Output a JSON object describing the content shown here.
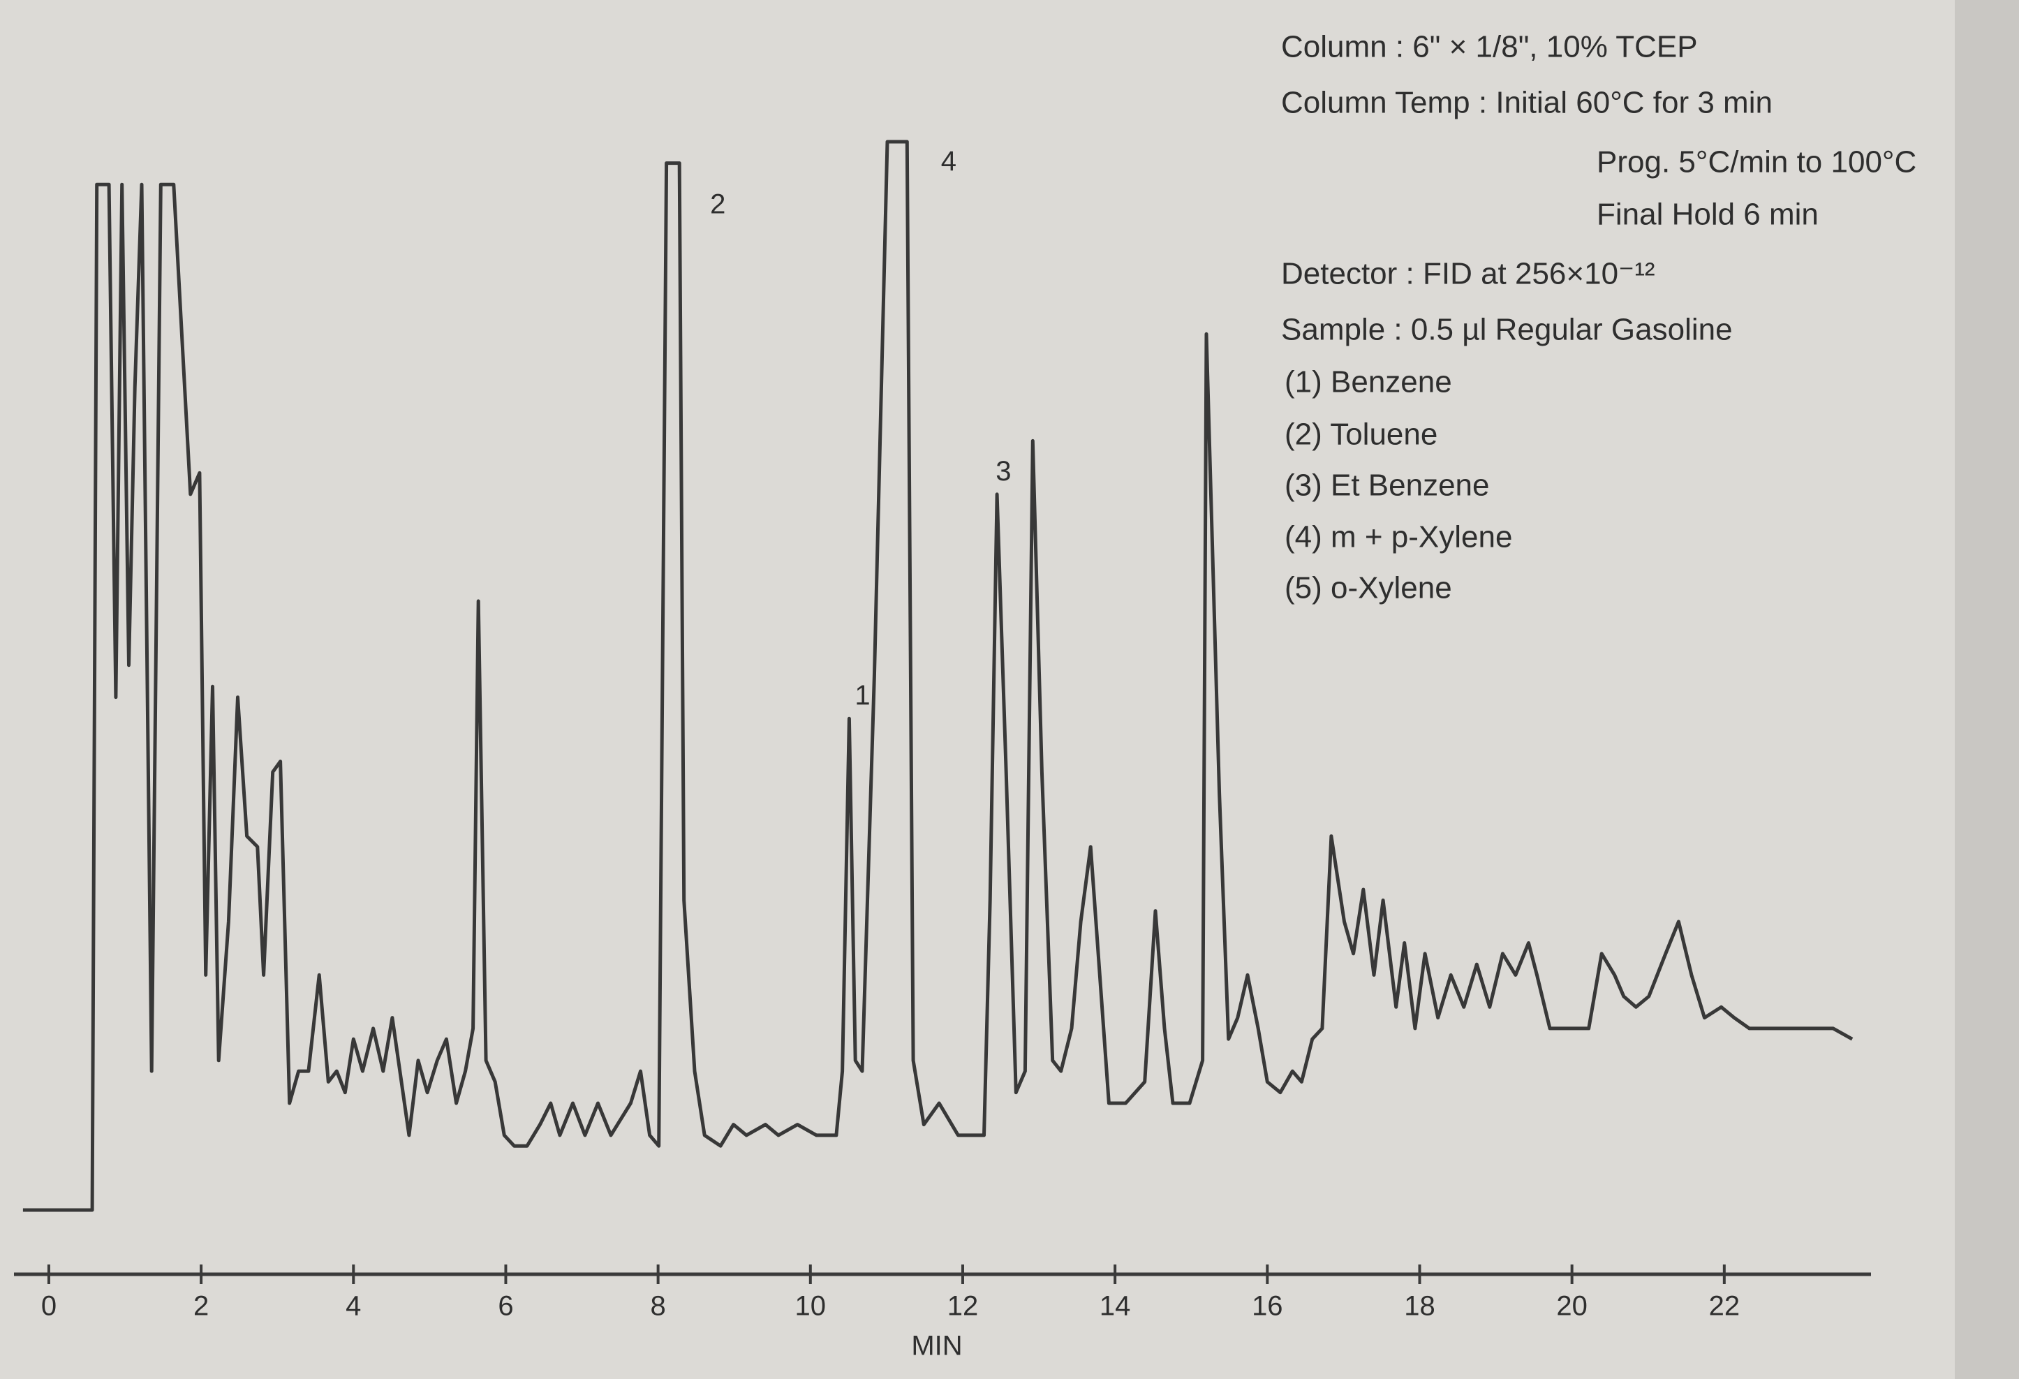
{
  "chart_data": {
    "type": "line",
    "x_label": "MIN",
    "annotations": [
      "Column : 6\" × 1/8\", 10% TCEP",
      "Column Temp : Initial 60°C for 3 min",
      "Prog. 5°C/min to 100°C",
      "Final Hold 6 min",
      "Detector : FID at 256×10⁻¹²",
      "Sample : 0.5 µl Regular Gasoline",
      "(1) Benzene",
      "(2) Toluene",
      "(3) Et Benzene",
      "(4) m + p-Xylene",
      "(5) o-Xylene"
    ],
    "peak_labels": [
      {
        "text": "1",
        "x": 10.51,
        "y": 48
      },
      {
        "text": "2",
        "x": 8.61,
        "y": 94
      },
      {
        "text": "3",
        "x": 12.36,
        "y": 69
      },
      {
        "text": "4",
        "x": 11.64,
        "y": 98
      }
    ],
    "x": [
      -0.34,
      0.57,
      0.63,
      0.79,
      0.88,
      0.96,
      1.05,
      1.13,
      1.22,
      1.35,
      1.47,
      1.64,
      1.86,
      1.98,
      2.06,
      2.15,
      2.23,
      2.36,
      2.48,
      2.6,
      2.74,
      2.82,
      2.94,
      3.04,
      3.16,
      3.28,
      3.41,
      3.55,
      3.67,
      3.78,
      3.89,
      4.0,
      4.12,
      4.26,
      4.39,
      4.51,
      4.63,
      4.73,
      4.85,
      4.97,
      5.1,
      5.22,
      5.35,
      5.47,
      5.57,
      5.64,
      5.74,
      5.86,
      5.98,
      6.11,
      6.28,
      6.45,
      6.59,
      6.71,
      6.88,
      7.04,
      7.21,
      7.38,
      7.64,
      7.77,
      7.89,
      8.01,
      8.11,
      8.28,
      8.34,
      8.48,
      8.61,
      8.82,
      8.99,
      9.16,
      9.41,
      9.58,
      9.83,
      10.08,
      10.34,
      10.42,
      10.51,
      10.59,
      10.68,
      10.84,
      11.01,
      11.27,
      11.35,
      11.49,
      11.69,
      11.94,
      12.28,
      12.36,
      12.45,
      12.57,
      12.7,
      12.82,
      12.92,
      13.04,
      13.18,
      13.29,
      13.43,
      13.55,
      13.68,
      13.8,
      13.92,
      14.14,
      14.39,
      14.53,
      14.65,
      14.76,
      14.98,
      15.15,
      15.2,
      15.37,
      15.49,
      15.61,
      15.74,
      15.88,
      16.0,
      16.17,
      16.33,
      16.45,
      16.59,
      16.72,
      16.84,
      17.01,
      17.13,
      17.26,
      17.4,
      17.52,
      17.69,
      17.8,
      17.94,
      18.07,
      18.24,
      18.41,
      18.58,
      18.75,
      18.92,
      19.09,
      19.26,
      19.43,
      19.54,
      19.71,
      19.88,
      20.22,
      20.39,
      20.56,
      20.68,
      20.84,
      21.01,
      21.23,
      21.4,
      21.57,
      21.74,
      21.96,
      22.13,
      22.33,
      22.59,
      22.84,
      23.09,
      23.43,
      23.68
    ],
    "series": [
      {
        "color": "#383838",
        "values": [
          0,
          0,
          96,
          96,
          48,
          96,
          51,
          77,
          96,
          13,
          96,
          96,
          67,
          69,
          22,
          49,
          14,
          27,
          48,
          35,
          34,
          22,
          41,
          42,
          10,
          13,
          13,
          22,
          12,
          13,
          11,
          16,
          13,
          17,
          13,
          18,
          12,
          7,
          14,
          11,
          14,
          16,
          10,
          13,
          17,
          57,
          14,
          12,
          7,
          6,
          6,
          8,
          10,
          7,
          10,
          7,
          10,
          7,
          10,
          13,
          7,
          6,
          98,
          98,
          29,
          13,
          7,
          6,
          8,
          7,
          8,
          7,
          8,
          7,
          7,
          13,
          46,
          14,
          13,
          50,
          100,
          100,
          14,
          8,
          10,
          7,
          7,
          29,
          67,
          41,
          11,
          13,
          72,
          41,
          14,
          13,
          17,
          27,
          34,
          22,
          10,
          10,
          12,
          28,
          17,
          10,
          10,
          14,
          82,
          39,
          16,
          18,
          22,
          17,
          12,
          11,
          13,
          12,
          16,
          17,
          35,
          27,
          24,
          30,
          22,
          29,
          19,
          25,
          17,
          24,
          18,
          22,
          19,
          23,
          19,
          24,
          22,
          25,
          22,
          17,
          17,
          17,
          24,
          22,
          20,
          19,
          20,
          24,
          27,
          22,
          18,
          19,
          18,
          17,
          17,
          17,
          17,
          17,
          16
        ]
      }
    ],
    "xlim": [
      -0.5,
      24
    ],
    "xticks": [
      0,
      2,
      4,
      6,
      8,
      10,
      12,
      14,
      16,
      18,
      20,
      22
    ],
    "ylim": [
      0,
      105
    ]
  }
}
